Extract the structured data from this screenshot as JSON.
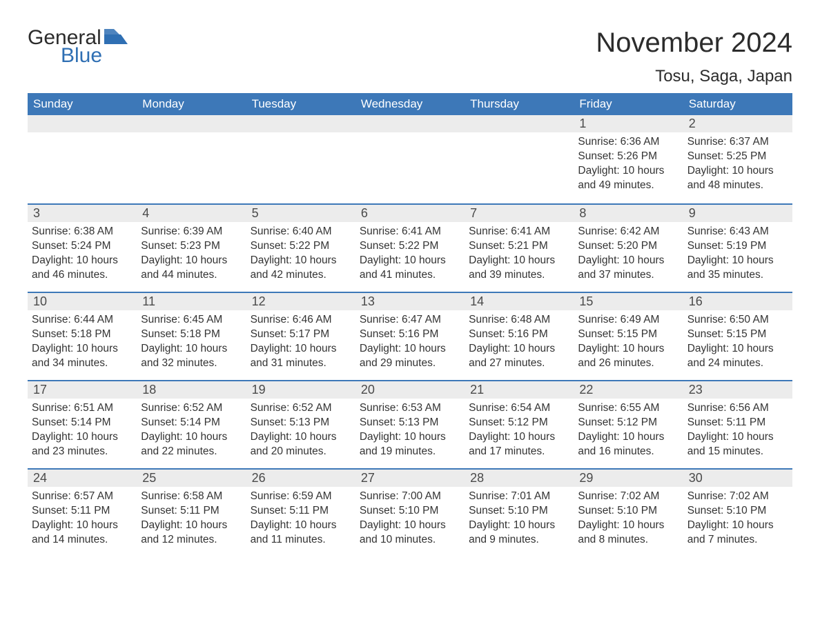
{
  "logo": {
    "text1": "General",
    "text2": "Blue",
    "flag_color": "#2f6fb3"
  },
  "title": "November 2024",
  "location": "Tosu, Saga, Japan",
  "header_bg": "#3d78b8",
  "weekday_labels": [
    "Sunday",
    "Monday",
    "Tuesday",
    "Wednesday",
    "Thursday",
    "Friday",
    "Saturday"
  ],
  "weeks": [
    [
      {
        "empty": true
      },
      {
        "empty": true
      },
      {
        "empty": true
      },
      {
        "empty": true
      },
      {
        "empty": true
      },
      {
        "num": "1",
        "sunrise": "Sunrise: 6:36 AM",
        "sunset": "Sunset: 5:26 PM",
        "daylight": "Daylight: 10 hours and 49 minutes."
      },
      {
        "num": "2",
        "sunrise": "Sunrise: 6:37 AM",
        "sunset": "Sunset: 5:25 PM",
        "daylight": "Daylight: 10 hours and 48 minutes."
      }
    ],
    [
      {
        "num": "3",
        "sunrise": "Sunrise: 6:38 AM",
        "sunset": "Sunset: 5:24 PM",
        "daylight": "Daylight: 10 hours and 46 minutes."
      },
      {
        "num": "4",
        "sunrise": "Sunrise: 6:39 AM",
        "sunset": "Sunset: 5:23 PM",
        "daylight": "Daylight: 10 hours and 44 minutes."
      },
      {
        "num": "5",
        "sunrise": "Sunrise: 6:40 AM",
        "sunset": "Sunset: 5:22 PM",
        "daylight": "Daylight: 10 hours and 42 minutes."
      },
      {
        "num": "6",
        "sunrise": "Sunrise: 6:41 AM",
        "sunset": "Sunset: 5:22 PM",
        "daylight": "Daylight: 10 hours and 41 minutes."
      },
      {
        "num": "7",
        "sunrise": "Sunrise: 6:41 AM",
        "sunset": "Sunset: 5:21 PM",
        "daylight": "Daylight: 10 hours and 39 minutes."
      },
      {
        "num": "8",
        "sunrise": "Sunrise: 6:42 AM",
        "sunset": "Sunset: 5:20 PM",
        "daylight": "Daylight: 10 hours and 37 minutes."
      },
      {
        "num": "9",
        "sunrise": "Sunrise: 6:43 AM",
        "sunset": "Sunset: 5:19 PM",
        "daylight": "Daylight: 10 hours and 35 minutes."
      }
    ],
    [
      {
        "num": "10",
        "sunrise": "Sunrise: 6:44 AM",
        "sunset": "Sunset: 5:18 PM",
        "daylight": "Daylight: 10 hours and 34 minutes."
      },
      {
        "num": "11",
        "sunrise": "Sunrise: 6:45 AM",
        "sunset": "Sunset: 5:18 PM",
        "daylight": "Daylight: 10 hours and 32 minutes."
      },
      {
        "num": "12",
        "sunrise": "Sunrise: 6:46 AM",
        "sunset": "Sunset: 5:17 PM",
        "daylight": "Daylight: 10 hours and 31 minutes."
      },
      {
        "num": "13",
        "sunrise": "Sunrise: 6:47 AM",
        "sunset": "Sunset: 5:16 PM",
        "daylight": "Daylight: 10 hours and 29 minutes."
      },
      {
        "num": "14",
        "sunrise": "Sunrise: 6:48 AM",
        "sunset": "Sunset: 5:16 PM",
        "daylight": "Daylight: 10 hours and 27 minutes."
      },
      {
        "num": "15",
        "sunrise": "Sunrise: 6:49 AM",
        "sunset": "Sunset: 5:15 PM",
        "daylight": "Daylight: 10 hours and 26 minutes."
      },
      {
        "num": "16",
        "sunrise": "Sunrise: 6:50 AM",
        "sunset": "Sunset: 5:15 PM",
        "daylight": "Daylight: 10 hours and 24 minutes."
      }
    ],
    [
      {
        "num": "17",
        "sunrise": "Sunrise: 6:51 AM",
        "sunset": "Sunset: 5:14 PM",
        "daylight": "Daylight: 10 hours and 23 minutes."
      },
      {
        "num": "18",
        "sunrise": "Sunrise: 6:52 AM",
        "sunset": "Sunset: 5:14 PM",
        "daylight": "Daylight: 10 hours and 22 minutes."
      },
      {
        "num": "19",
        "sunrise": "Sunrise: 6:52 AM",
        "sunset": "Sunset: 5:13 PM",
        "daylight": "Daylight: 10 hours and 20 minutes."
      },
      {
        "num": "20",
        "sunrise": "Sunrise: 6:53 AM",
        "sunset": "Sunset: 5:13 PM",
        "daylight": "Daylight: 10 hours and 19 minutes."
      },
      {
        "num": "21",
        "sunrise": "Sunrise: 6:54 AM",
        "sunset": "Sunset: 5:12 PM",
        "daylight": "Daylight: 10 hours and 17 minutes."
      },
      {
        "num": "22",
        "sunrise": "Sunrise: 6:55 AM",
        "sunset": "Sunset: 5:12 PM",
        "daylight": "Daylight: 10 hours and 16 minutes."
      },
      {
        "num": "23",
        "sunrise": "Sunrise: 6:56 AM",
        "sunset": "Sunset: 5:11 PM",
        "daylight": "Daylight: 10 hours and 15 minutes."
      }
    ],
    [
      {
        "num": "24",
        "sunrise": "Sunrise: 6:57 AM",
        "sunset": "Sunset: 5:11 PM",
        "daylight": "Daylight: 10 hours and 14 minutes."
      },
      {
        "num": "25",
        "sunrise": "Sunrise: 6:58 AM",
        "sunset": "Sunset: 5:11 PM",
        "daylight": "Daylight: 10 hours and 12 minutes."
      },
      {
        "num": "26",
        "sunrise": "Sunrise: 6:59 AM",
        "sunset": "Sunset: 5:11 PM",
        "daylight": "Daylight: 10 hours and 11 minutes."
      },
      {
        "num": "27",
        "sunrise": "Sunrise: 7:00 AM",
        "sunset": "Sunset: 5:10 PM",
        "daylight": "Daylight: 10 hours and 10 minutes."
      },
      {
        "num": "28",
        "sunrise": "Sunrise: 7:01 AM",
        "sunset": "Sunset: 5:10 PM",
        "daylight": "Daylight: 10 hours and 9 minutes."
      },
      {
        "num": "29",
        "sunrise": "Sunrise: 7:02 AM",
        "sunset": "Sunset: 5:10 PM",
        "daylight": "Daylight: 10 hours and 8 minutes."
      },
      {
        "num": "30",
        "sunrise": "Sunrise: 7:02 AM",
        "sunset": "Sunset: 5:10 PM",
        "daylight": "Daylight: 10 hours and 7 minutes."
      }
    ]
  ]
}
